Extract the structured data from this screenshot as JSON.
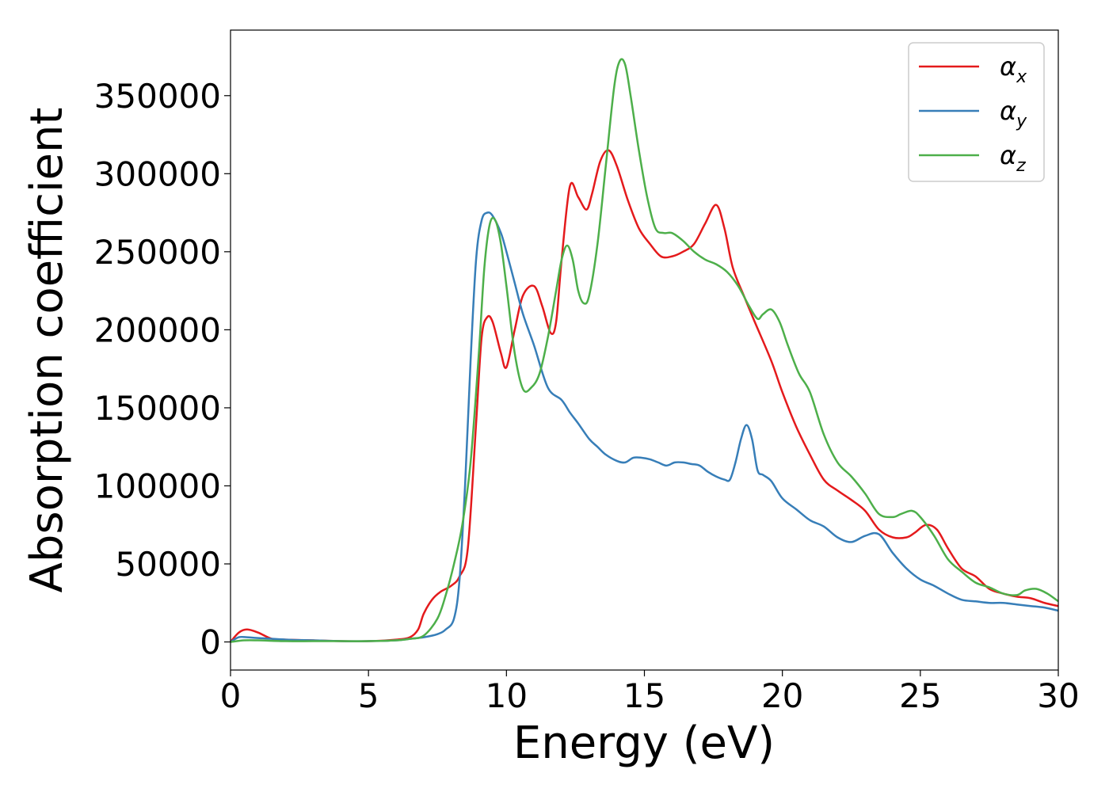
{
  "chart_data": {
    "type": "line",
    "title": "",
    "xlabel": "Energy (eV)",
    "ylabel": "Absorption coefficient",
    "xlim": [
      0,
      30
    ],
    "ylim": [
      -18000,
      392000
    ],
    "xticks": [
      0,
      5,
      10,
      15,
      20,
      25,
      30
    ],
    "yticks": [
      0,
      50000,
      100000,
      150000,
      200000,
      250000,
      300000,
      350000
    ],
    "xtick_labels": [
      "0",
      "5",
      "10",
      "15",
      "20",
      "25",
      "30"
    ],
    "ytick_labels": [
      "0",
      "50000",
      "100000",
      "150000",
      "200000",
      "250000",
      "300000",
      "350000"
    ],
    "grid": false,
    "legend_position": "top-right",
    "series": [
      {
        "name": "α",
        "subscript": "x",
        "color": "#e41a1c",
        "x": [
          0,
          0.3,
          0.6,
          1.0,
          1.5,
          2.0,
          3.0,
          4.0,
          5.0,
          6.0,
          6.5,
          6.8,
          7.0,
          7.3,
          7.6,
          8.0,
          8.3,
          8.6,
          8.9,
          9.1,
          9.3,
          9.5,
          9.8,
          10.0,
          10.3,
          10.6,
          11.0,
          11.3,
          11.6,
          11.8,
          12.0,
          12.3,
          12.6,
          12.9,
          13.1,
          13.4,
          13.7,
          14.0,
          14.4,
          14.8,
          15.2,
          15.6,
          16.0,
          16.4,
          16.8,
          17.2,
          17.6,
          17.9,
          18.2,
          18.6,
          19.0,
          19.6,
          20.0,
          20.5,
          21.0,
          21.5,
          22.0,
          22.5,
          23.0,
          23.5,
          24.0,
          24.5,
          24.8,
          25.2,
          25.6,
          26.0,
          26.5,
          27.0,
          27.5,
          28.0,
          28.5,
          29.0,
          29.5,
          30.0
        ],
        "values": [
          0,
          6000,
          8000,
          6000,
          2000,
          1500,
          1000,
          500,
          500,
          1500,
          3000,
          8000,
          18000,
          27000,
          32000,
          36000,
          42000,
          60000,
          140000,
          195000,
          208000,
          205000,
          185000,
          176000,
          200000,
          222000,
          228000,
          215000,
          198000,
          205000,
          245000,
          292000,
          285000,
          277000,
          287000,
          308000,
          315000,
          305000,
          283000,
          265000,
          255000,
          247000,
          247000,
          250000,
          255000,
          268000,
          280000,
          265000,
          240000,
          222000,
          205000,
          180000,
          160000,
          138000,
          120000,
          104000,
          97000,
          91000,
          84000,
          72000,
          67000,
          67000,
          70000,
          75000,
          72000,
          60000,
          47000,
          42000,
          34000,
          31000,
          29000,
          28000,
          25000,
          23000
        ]
      },
      {
        "name": "α",
        "subscript": "y",
        "color": "#377eb8",
        "x": [
          0,
          0.3,
          0.6,
          1.0,
          2.0,
          3.0,
          4.0,
          5.0,
          6.0,
          6.5,
          7.0,
          7.5,
          7.8,
          8.1,
          8.3,
          8.5,
          8.7,
          8.9,
          9.1,
          9.3,
          9.5,
          9.8,
          10.0,
          10.3,
          10.6,
          11.0,
          11.5,
          12.0,
          12.3,
          12.6,
          13.0,
          13.3,
          13.6,
          14.0,
          14.3,
          14.6,
          14.9,
          15.2,
          15.5,
          15.8,
          16.1,
          16.4,
          16.7,
          17.0,
          17.3,
          17.6,
          17.9,
          18.1,
          18.3,
          18.5,
          18.7,
          18.9,
          19.1,
          19.3,
          19.6,
          20.0,
          20.5,
          21.0,
          21.5,
          22.0,
          22.5,
          23.0,
          23.5,
          24.0,
          24.5,
          25.0,
          25.5,
          26.0,
          26.5,
          27.0,
          27.5,
          28.0,
          28.5,
          29.0,
          29.5,
          30.0
        ],
        "values": [
          0,
          3000,
          3000,
          2500,
          1500,
          1000,
          500,
          500,
          1000,
          2000,
          3000,
          5000,
          8000,
          15000,
          40000,
          100000,
          180000,
          245000,
          270000,
          275000,
          273000,
          262000,
          250000,
          230000,
          210000,
          190000,
          163000,
          155000,
          147000,
          140000,
          130000,
          125000,
          120000,
          116000,
          115000,
          118000,
          118000,
          117000,
          115000,
          113000,
          115000,
          115000,
          114000,
          113000,
          109000,
          106000,
          104000,
          104000,
          115000,
          130000,
          139000,
          130000,
          110000,
          107000,
          103000,
          92000,
          85000,
          78000,
          74000,
          67000,
          64000,
          68000,
          69000,
          57000,
          47000,
          40000,
          36000,
          31000,
          27000,
          26000,
          25000,
          25000,
          24000,
          23000,
          22000,
          20000
        ]
      },
      {
        "name": "α",
        "subscript": "z",
        "color": "#4daf4a",
        "x": [
          0,
          0.5,
          1.0,
          2.0,
          3.0,
          4.0,
          5.0,
          6.0,
          6.5,
          7.0,
          7.5,
          7.8,
          8.1,
          8.4,
          8.7,
          9.0,
          9.2,
          9.4,
          9.6,
          9.8,
          10.0,
          10.3,
          10.6,
          10.9,
          11.2,
          11.5,
          11.8,
          12.0,
          12.2,
          12.4,
          12.6,
          12.8,
          13.0,
          13.3,
          13.6,
          13.9,
          14.1,
          14.3,
          14.5,
          14.8,
          15.1,
          15.4,
          15.7,
          16.0,
          16.4,
          16.8,
          17.2,
          17.6,
          18.0,
          18.4,
          18.8,
          19.1,
          19.3,
          19.6,
          19.9,
          20.2,
          20.6,
          21.0,
          21.5,
          22.0,
          22.5,
          23.0,
          23.5,
          24.0,
          24.3,
          24.7,
          25.0,
          25.5,
          26.0,
          26.5,
          27.0,
          27.5,
          28.0,
          28.5,
          28.8,
          29.2,
          29.6,
          30.0
        ],
        "values": [
          0,
          1000,
          1000,
          500,
          500,
          500,
          500,
          1000,
          2000,
          4000,
          15000,
          30000,
          50000,
          75000,
          115000,
          185000,
          240000,
          268000,
          270000,
          255000,
          228000,
          185000,
          162000,
          163000,
          172000,
          195000,
          225000,
          245000,
          254000,
          245000,
          225000,
          217000,
          222000,
          255000,
          305000,
          355000,
          372000,
          370000,
          350000,
          315000,
          285000,
          265000,
          262000,
          262000,
          257000,
          250000,
          245000,
          242000,
          237000,
          228000,
          215000,
          207000,
          210000,
          213000,
          205000,
          190000,
          172000,
          160000,
          133000,
          115000,
          106000,
          95000,
          82000,
          80000,
          82000,
          84000,
          80000,
          68000,
          53000,
          45000,
          38000,
          35000,
          31000,
          30000,
          33000,
          34000,
          31000,
          26000
        ]
      }
    ]
  }
}
